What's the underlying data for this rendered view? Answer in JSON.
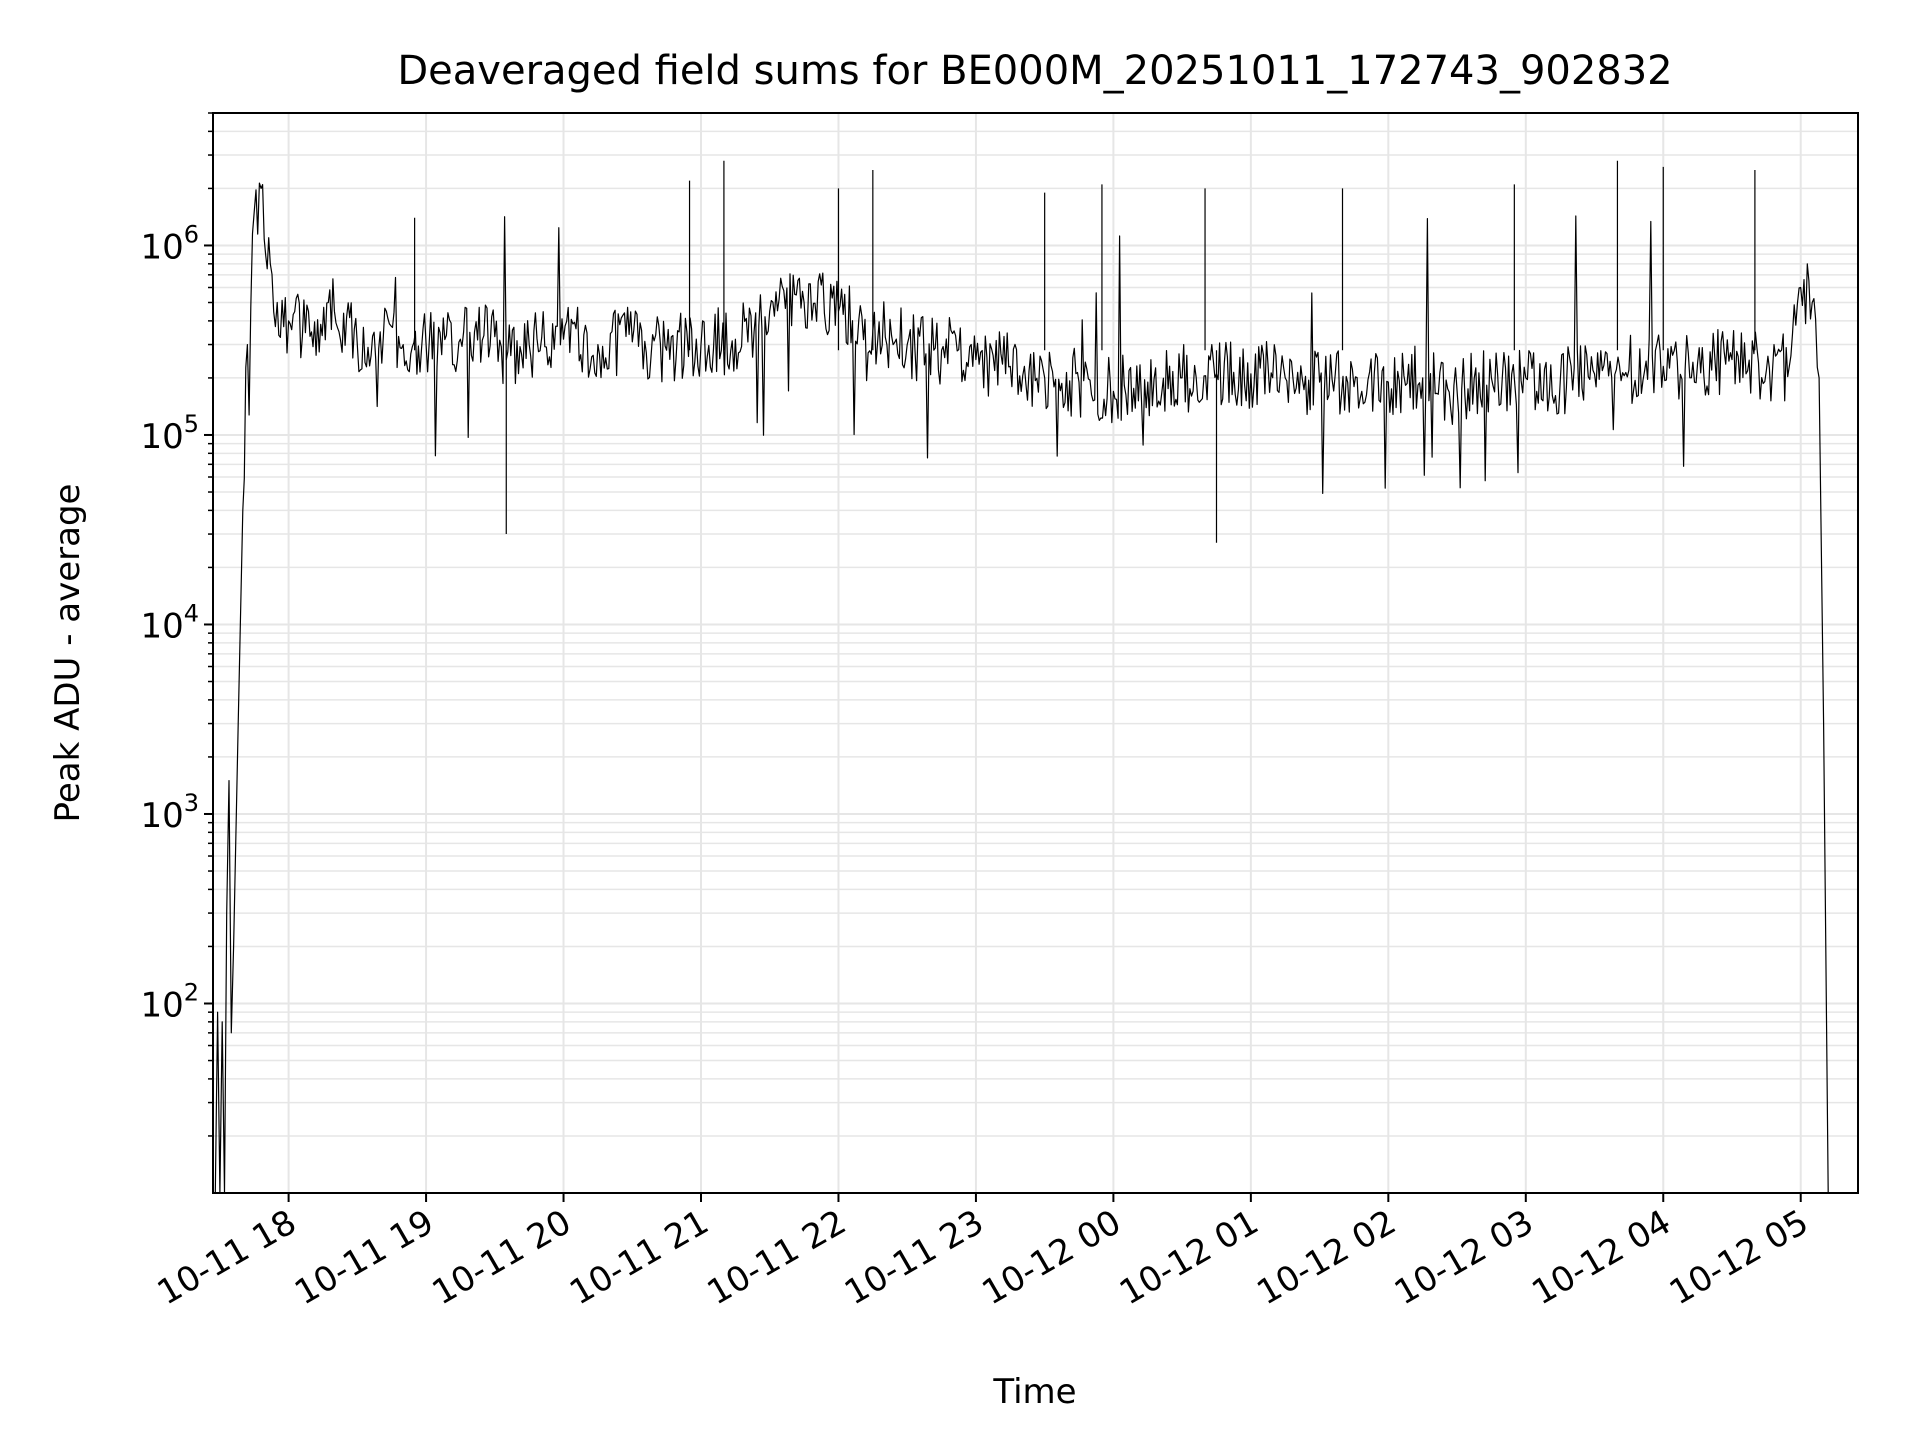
{
  "chart_data": {
    "type": "line",
    "title": "Deaveraged field sums for BE000M_20251011_172743_902832",
    "xlabel": "Time",
    "ylabel": "Peak ADU - average",
    "yscale": "log",
    "xlim": [
      "2025-10-11 17:27",
      "2025-10-12 05:25"
    ],
    "ylim": [
      10,
      5000000
    ],
    "grid": true,
    "grid_minor": true,
    "line_color": "#000000",
    "grid_color": "#e6e6e6",
    "x_ticks": [
      {
        "value": "2025-10-11 18:00",
        "label": "10-11 18"
      },
      {
        "value": "2025-10-11 19:00",
        "label": "10-11 19"
      },
      {
        "value": "2025-10-11 20:00",
        "label": "10-11 20"
      },
      {
        "value": "2025-10-11 21:00",
        "label": "10-11 21"
      },
      {
        "value": "2025-10-11 22:00",
        "label": "10-11 22"
      },
      {
        "value": "2025-10-11 23:00",
        "label": "10-11 23"
      },
      {
        "value": "2025-10-12 00:00",
        "label": "10-12 00"
      },
      {
        "value": "2025-10-12 01:00",
        "label": "10-12 01"
      },
      {
        "value": "2025-10-12 02:00",
        "label": "10-12 02"
      },
      {
        "value": "2025-10-12 03:00",
        "label": "10-12 03"
      },
      {
        "value": "2025-10-12 04:00",
        "label": "10-12 04"
      },
      {
        "value": "2025-10-12 05:00",
        "label": "10-12 05"
      }
    ],
    "y_ticks": [
      {
        "value": 100,
        "base": "10",
        "exp": "2"
      },
      {
        "value": 1000,
        "base": "10",
        "exp": "3"
      },
      {
        "value": 10000,
        "base": "10",
        "exp": "4"
      },
      {
        "value": 100000,
        "base": "10",
        "exp": "5"
      },
      {
        "value": 1000000,
        "base": "10",
        "exp": "6"
      }
    ],
    "series": [
      {
        "x": [
          "2025-10-11 17:28",
          "2025-10-11 17:29",
          "2025-10-11 17:30",
          "2025-10-11 17:31",
          "2025-10-11 17:32",
          "2025-10-11 17:33",
          "2025-10-11 17:34",
          "2025-10-11 17:35",
          "2025-10-11 17:36",
          "2025-10-11 17:38",
          "2025-10-11 17:40",
          "2025-10-11 17:42",
          "2025-10-11 17:45",
          "2025-10-11 17:48",
          "2025-10-11 17:52",
          "2025-10-11 17:55",
          "2025-10-11 18:00",
          "2025-10-11 18:10",
          "2025-10-11 18:20",
          "2025-10-11 18:30",
          "2025-10-11 18:40",
          "2025-10-11 18:50",
          "2025-10-11 19:00",
          "2025-10-11 19:15",
          "2025-10-11 19:30",
          "2025-10-11 19:35",
          "2025-10-11 19:45",
          "2025-10-11 20:00",
          "2025-10-11 20:15",
          "2025-10-11 20:30",
          "2025-10-11 20:45",
          "2025-10-11 21:00",
          "2025-10-11 21:15",
          "2025-10-11 21:30",
          "2025-10-11 21:45",
          "2025-10-11 22:00",
          "2025-10-11 22:15",
          "2025-10-11 22:30",
          "2025-10-11 22:45",
          "2025-10-11 23:00",
          "2025-10-11 23:15",
          "2025-10-11 23:30",
          "2025-10-11 23:45",
          "2025-10-12 00:00",
          "2025-10-12 00:15",
          "2025-10-12 00:30",
          "2025-10-12 00:45",
          "2025-10-12 01:00",
          "2025-10-12 01:15",
          "2025-10-12 01:30",
          "2025-10-12 01:45",
          "2025-10-12 02:00",
          "2025-10-12 02:15",
          "2025-10-12 02:30",
          "2025-10-12 02:45",
          "2025-10-12 03:00",
          "2025-10-12 03:15",
          "2025-10-12 03:30",
          "2025-10-12 03:45",
          "2025-10-12 04:00",
          "2025-10-12 04:15",
          "2025-10-12 04:30",
          "2025-10-12 04:45",
          "2025-10-12 04:55",
          "2025-10-12 05:00",
          "2025-10-12 05:05",
          "2025-10-12 05:08",
          "2025-10-12 05:10",
          "2025-10-12 05:12",
          "2025-10-12 05:14"
        ],
        "y": [
          10,
          90,
          10,
          80,
          10,
          300,
          1500,
          70,
          200,
          3000,
          40000,
          300000,
          1500000,
          2000000,
          800000,
          500000,
          400000,
          350000,
          450000,
          300000,
          350000,
          300000,
          300000,
          320000,
          330000,
          250000,
          300000,
          320000,
          300000,
          310000,
          280000,
          300000,
          320000,
          450000,
          500000,
          450000,
          350000,
          300000,
          280000,
          250000,
          230000,
          200000,
          190000,
          170000,
          190000,
          200000,
          210000,
          210000,
          200000,
          190000,
          180000,
          190000,
          200000,
          170000,
          200000,
          200000,
          190000,
          210000,
          220000,
          230000,
          240000,
          250000,
          220000,
          230000,
          600000,
          500000,
          200000,
          3000,
          10,
          10
        ]
      }
    ],
    "spikes": [
      {
        "x": "2025-10-11 18:55",
        "y": 1400000
      },
      {
        "x": "2025-10-11 19:35",
        "y": 30000
      },
      {
        "x": "2025-10-11 20:55",
        "y": 2200000
      },
      {
        "x": "2025-10-11 21:10",
        "y": 2800000
      },
      {
        "x": "2025-10-11 22:00",
        "y": 2000000
      },
      {
        "x": "2025-10-11 22:15",
        "y": 2500000
      },
      {
        "x": "2025-10-11 23:30",
        "y": 1900000
      },
      {
        "x": "2025-10-11 23:55",
        "y": 2100000
      },
      {
        "x": "2025-10-12 00:45",
        "y": 27000
      },
      {
        "x": "2025-10-12 00:40",
        "y": 2000000
      },
      {
        "x": "2025-10-12 01:40",
        "y": 2000000
      },
      {
        "x": "2025-10-12 02:55",
        "y": 2100000
      },
      {
        "x": "2025-10-12 03:40",
        "y": 2800000
      },
      {
        "x": "2025-10-12 04:00",
        "y": 2600000
      },
      {
        "x": "2025-10-12 04:40",
        "y": 2500000
      }
    ]
  }
}
